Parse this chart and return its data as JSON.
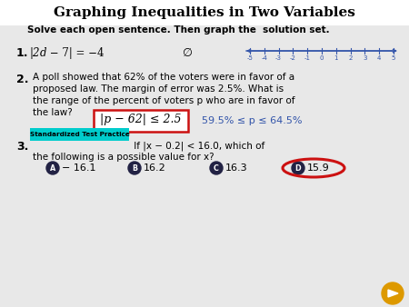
{
  "title": "Graphing Inequalities in Two Variables",
  "subtitle": "Solve each open sentence. Then graph the  solution set.",
  "bg_color": "#e8e8e8",
  "title_color": "#000000",
  "blue_color": "#3355aa",
  "red_color": "#cc1111",
  "teal_color": "#00cccc",
  "dark_circle_color": "#222244",
  "item1_eq": "|2d − 7| = −4",
  "item1_answer": "∅",
  "number_line_ticks": [
    -5,
    -4,
    -3,
    -2,
    -1,
    0,
    1,
    2,
    3,
    4,
    5
  ],
  "item2_text_lines": [
    "A poll showed that 62% of the voters were in favor of a",
    "proposed law. The margin of error was 2.5%. What is",
    "the range of the percent of voters p who are in favor of",
    "the law?"
  ],
  "item2_eq": "|p − 62| ≤ 2.5",
  "item2_answer": "59.5% ≤ p ≤ 64.5%",
  "std_test_label": "Standardized Test Practice",
  "item3_text": " If |x − 0.2| < 16.0, which of",
  "item3_text2": "the following is a possible value for x?",
  "choices": [
    "− 16.1",
    "16.2",
    "16.3",
    "15.9"
  ],
  "choice_labels": [
    "A",
    "B",
    "C",
    "D"
  ],
  "nav_color": "#dd9900"
}
